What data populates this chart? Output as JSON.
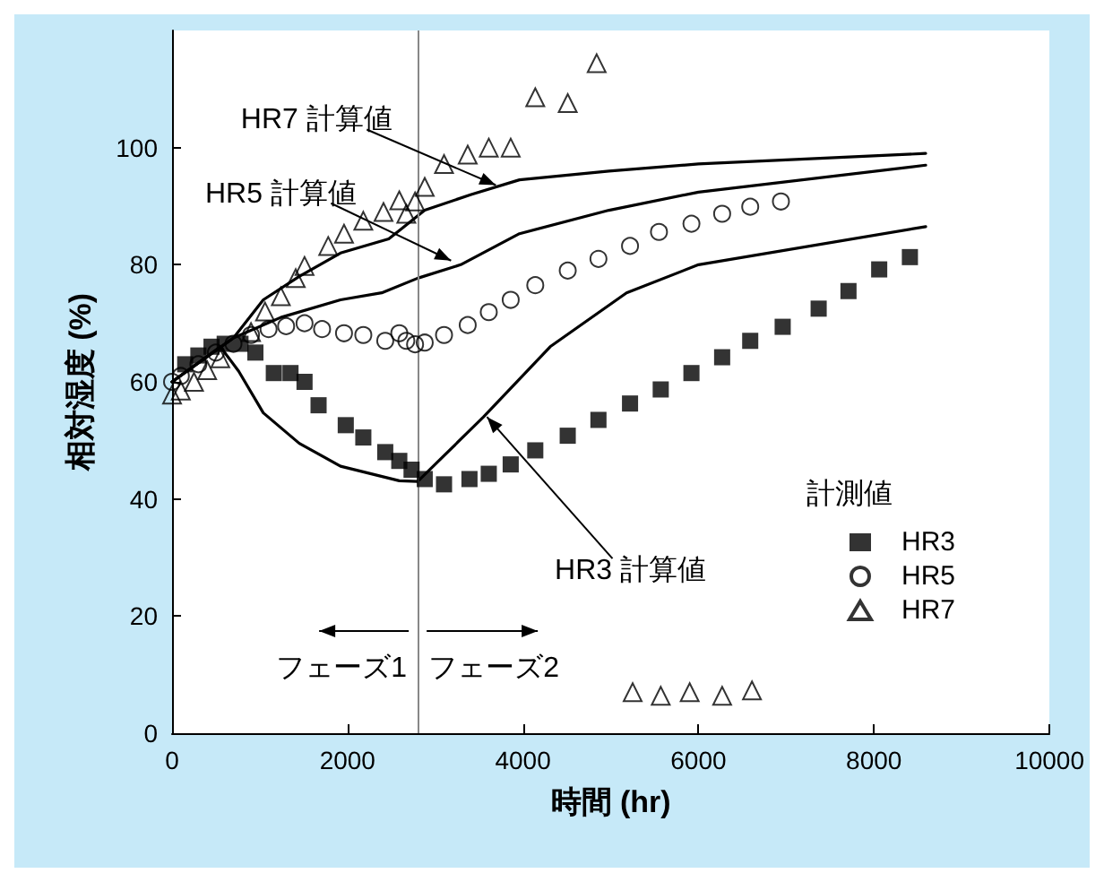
{
  "chart_data": {
    "type": "scatter",
    "xlabel": "時間 (hr)",
    "ylabel": "相対湿度 (%)",
    "legend_title": "計測値",
    "xlim": [
      0,
      10000
    ],
    "xticks": [
      0,
      2000,
      4000,
      6000,
      8000,
      10000
    ],
    "ylim": [
      0,
      120
    ],
    "yticks": [
      0,
      20,
      40,
      60,
      80,
      100
    ],
    "grid": false,
    "legend": "right",
    "series": [
      {
        "name": "HR3",
        "type": "scatter",
        "marker": "square",
        "color": "#000000",
        "x": [
          150,
          300,
          450,
          600,
          780,
          950,
          1160,
          1350,
          1510,
          1670,
          1980,
          2180,
          2430,
          2590,
          2730,
          2880,
          3100,
          3390,
          3610,
          3860,
          4140,
          4510,
          4860,
          5220,
          5570,
          5920,
          6270,
          6590,
          6960,
          7370,
          7710,
          8060,
          8410
        ],
        "values": [
          63,
          64.5,
          66,
          66.5,
          66.5,
          65,
          61.5,
          61.5,
          60,
          56,
          52.6,
          50.5,
          48,
          46.5,
          45,
          43.4,
          42.5,
          43.4,
          44.3,
          45.9,
          48.3,
          50.8,
          53.5,
          56.3,
          58.7,
          61.5,
          64.2,
          67,
          69.4,
          72.5,
          75.5,
          79.2,
          81.3
        ]
      },
      {
        "name": "HR5",
        "type": "scatter",
        "marker": "circle",
        "color": "#000000",
        "x": [
          0,
          100,
          300,
          500,
          700,
          900,
          1100,
          1300,
          1510,
          1710,
          1960,
          2180,
          2430,
          2590,
          2670,
          2770,
          2880,
          3100,
          3370,
          3610,
          3860,
          4140,
          4510,
          4860,
          5220,
          5550,
          5920,
          6270,
          6590,
          6940
        ],
        "values": [
          60,
          61,
          63,
          65,
          66.5,
          68,
          69,
          69.5,
          70,
          69,
          68.3,
          68,
          67,
          68.3,
          67,
          66.4,
          66.7,
          68,
          69.7,
          71.9,
          74,
          76.5,
          79,
          81,
          83.2,
          85.6,
          87,
          88.7,
          89.9,
          90.8
        ]
      },
      {
        "name": "HR7",
        "type": "scatter",
        "marker": "triangle",
        "color": "#000000",
        "x": [
          0,
          100,
          250,
          400,
          550,
          900,
          1060,
          1240,
          1410,
          1510,
          1780,
          1960,
          2180,
          2410,
          2590,
          2670,
          2770,
          2880,
          3100,
          3370,
          3610,
          3860,
          4140,
          4510,
          4840,
          5250,
          5570,
          5900,
          6270,
          6610
        ],
        "values": [
          57.8,
          58.5,
          60,
          62,
          64,
          68.5,
          72,
          74.6,
          77.7,
          79.8,
          83.2,
          85.3,
          87.5,
          89,
          91,
          88.7,
          90.8,
          93.3,
          97.2,
          98.8,
          100,
          100,
          108.6,
          107.6,
          114.4,
          7,
          6.4,
          7,
          6.4,
          7.3
        ]
      },
      {
        "type": "line",
        "marker": "none",
        "line_style": "solid",
        "color": "#000000",
        "x": [
          0,
          700,
          1040,
          1450,
          1920,
          2470,
          2880,
          3410,
          3960,
          4980,
          6000,
          8590
        ],
        "values": [
          60,
          67.5,
          74,
          78,
          82,
          84.4,
          89.3,
          92,
          94.5,
          96,
          97.2,
          99
        ]
      },
      {
        "type": "line",
        "marker": "none",
        "line_style": "solid",
        "color": "#000000",
        "x": [
          0,
          700,
          1240,
          1920,
          2390,
          2800,
          3290,
          3960,
          4980,
          6000,
          8590
        ],
        "values": [
          60,
          67.5,
          71,
          74,
          75.2,
          77.7,
          80,
          85.3,
          89.3,
          92.4,
          97
        ]
      },
      {
        "type": "line",
        "marker": "none",
        "line_style": "solid",
        "color": "#000000",
        "x": [
          0,
          550,
          760,
          1040,
          1450,
          1920,
          2590,
          2800,
          3550,
          4310,
          5180,
          6000,
          8590
        ],
        "values": [
          60,
          66,
          61.8,
          54.7,
          49.5,
          45.6,
          43.1,
          43,
          54,
          66,
          75.2,
          80,
          86.5
        ]
      }
    ],
    "ref_lines": [
      {
        "axis": "x",
        "value": 2800,
        "color": "#888888"
      }
    ],
    "annotations": [
      {
        "text": "HR7 計算値",
        "x": 3690,
        "y": 93.6
      },
      {
        "text": "HR5 計算値",
        "x": 3180,
        "y": 80.7
      },
      {
        "text": "HR3 計算値",
        "x": 3590,
        "y": 54
      },
      "フェーズ1",
      "フェーズ2"
    ]
  }
}
